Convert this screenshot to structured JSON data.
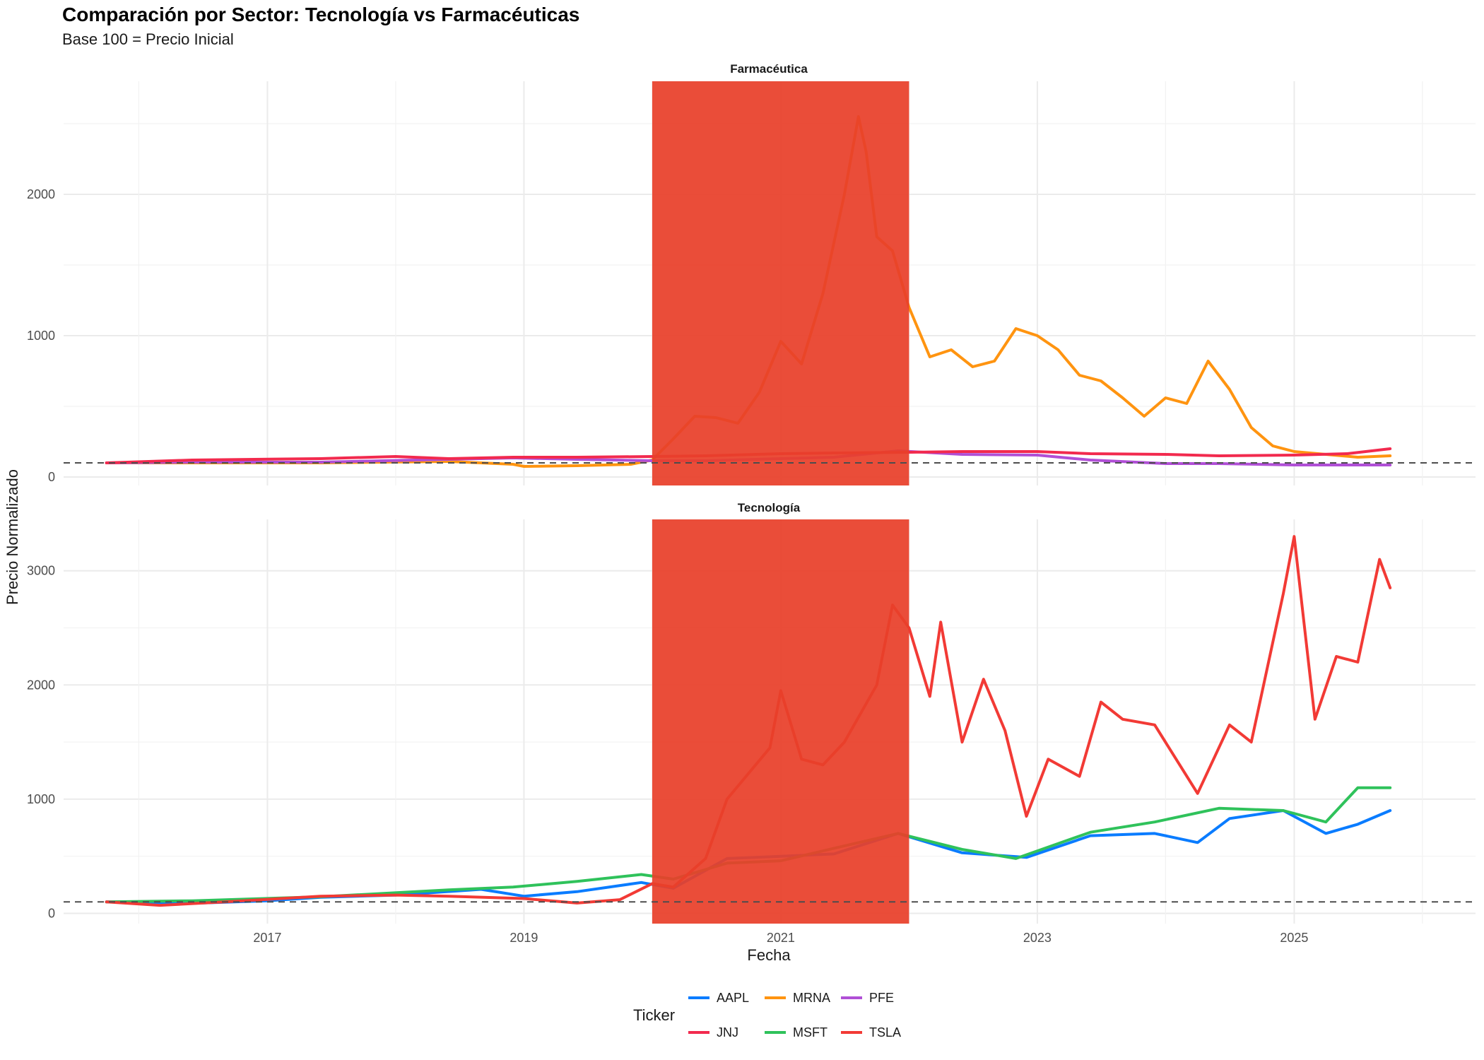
{
  "chart_data": {
    "type": "line",
    "title": "Comparación por Sector: Tecnología vs Farmacéuticas",
    "subtitle": "Base 100 = Precio Inicial",
    "xlabel": "Fecha",
    "ylabel": "Precio Normalizado",
    "x_ticks": [
      "2017",
      "2019",
      "2021",
      "2023",
      "2025"
    ],
    "xlim": [
      "2015-06-01",
      "2026-06-01"
    ],
    "grid": true,
    "reference_line": {
      "y": 100,
      "style": "dashed",
      "color": "#4d4d4d"
    },
    "highlight_period": {
      "start": "2020-01-01",
      "end": "2022-01-01",
      "color": "#E8402A"
    },
    "legend": {
      "title": "Ticker",
      "position": "bottom",
      "items": [
        {
          "label": "AAPL",
          "color": "#0A7CFF"
        },
        {
          "label": "MRNA",
          "color": "#FF9410"
        },
        {
          "label": "PFE",
          "color": "#B04FD6"
        },
        {
          "label": "JNJ",
          "color": "#F22A4E"
        },
        {
          "label": "MSFT",
          "color": "#2FC25B"
        },
        {
          "label": "TSLA",
          "color": "#F23A35"
        }
      ]
    },
    "panels": [
      {
        "strip": "Farmacéutica",
        "ylim": [
          -60,
          2800
        ],
        "y_ticks": [
          0,
          1000,
          2000
        ],
        "series": [
          {
            "name": "MRNA",
            "color": "#FF9410",
            "points": [
              [
                "2015-10-01",
                100
              ],
              [
                "2016-06-01",
                100
              ],
              [
                "2017-06-01",
                100
              ],
              [
                "2018-06-01",
                110
              ],
              [
                "2018-12-01",
                90
              ],
              [
                "2019-01-01",
                75
              ],
              [
                "2019-06-01",
                80
              ],
              [
                "2019-11-01",
                90
              ],
              [
                "2020-01-01",
                120
              ],
              [
                "2020-03-01",
                270
              ],
              [
                "2020-05-01",
                430
              ],
              [
                "2020-07-01",
                420
              ],
              [
                "2020-09-01",
                380
              ],
              [
                "2020-11-01",
                600
              ],
              [
                "2021-01-01",
                960
              ],
              [
                "2021-03-01",
                800
              ],
              [
                "2021-05-01",
                1300
              ],
              [
                "2021-07-01",
                2000
              ],
              [
                "2021-08-10",
                2550
              ],
              [
                "2021-09-01",
                2300
              ],
              [
                "2021-10-01",
                1700
              ],
              [
                "2021-11-15",
                1600
              ],
              [
                "2022-01-01",
                1200
              ],
              [
                "2022-03-01",
                850
              ],
              [
                "2022-05-01",
                900
              ],
              [
                "2022-07-01",
                780
              ],
              [
                "2022-09-01",
                820
              ],
              [
                "2022-11-01",
                1050
              ],
              [
                "2023-01-01",
                1000
              ],
              [
                "2023-03-01",
                900
              ],
              [
                "2023-05-01",
                720
              ],
              [
                "2023-07-01",
                680
              ],
              [
                "2023-09-01",
                560
              ],
              [
                "2023-11-01",
                430
              ],
              [
                "2024-01-01",
                560
              ],
              [
                "2024-03-01",
                520
              ],
              [
                "2024-05-01",
                820
              ],
              [
                "2024-07-01",
                620
              ],
              [
                "2024-09-01",
                350
              ],
              [
                "2024-11-01",
                220
              ],
              [
                "2025-01-01",
                180
              ],
              [
                "2025-04-01",
                160
              ],
              [
                "2025-07-01",
                140
              ],
              [
                "2025-10-01",
                150
              ]
            ]
          },
          {
            "name": "PFE",
            "color": "#B04FD6",
            "points": [
              [
                "2015-10-01",
                100
              ],
              [
                "2016-06-01",
                105
              ],
              [
                "2017-06-01",
                105
              ],
              [
                "2018-06-01",
                125
              ],
              [
                "2018-12-01",
                135
              ],
              [
                "2019-06-01",
                125
              ],
              [
                "2020-01-01",
                115
              ],
              [
                "2020-06-01",
                115
              ],
              [
                "2021-01-01",
                130
              ],
              [
                "2021-06-01",
                140
              ],
              [
                "2021-12-01",
                185
              ],
              [
                "2022-06-01",
                160
              ],
              [
                "2023-01-01",
                155
              ],
              [
                "2023-06-01",
                120
              ],
              [
                "2024-01-01",
                95
              ],
              [
                "2024-06-01",
                95
              ],
              [
                "2025-01-01",
                85
              ],
              [
                "2025-10-01",
                85
              ]
            ]
          },
          {
            "name": "JNJ",
            "color": "#F22A4E",
            "points": [
              [
                "2015-10-01",
                100
              ],
              [
                "2016-06-01",
                120
              ],
              [
                "2017-06-01",
                130
              ],
              [
                "2018-01-01",
                145
              ],
              [
                "2018-06-01",
                130
              ],
              [
                "2018-12-01",
                140
              ],
              [
                "2019-06-01",
                140
              ],
              [
                "2020-01-01",
                145
              ],
              [
                "2020-06-01",
                150
              ],
              [
                "2021-01-01",
                165
              ],
              [
                "2021-06-01",
                170
              ],
              [
                "2022-01-01",
                175
              ],
              [
                "2022-06-01",
                180
              ],
              [
                "2023-01-01",
                180
              ],
              [
                "2023-06-01",
                165
              ],
              [
                "2024-01-01",
                160
              ],
              [
                "2024-06-01",
                150
              ],
              [
                "2025-01-01",
                155
              ],
              [
                "2025-06-01",
                165
              ],
              [
                "2025-10-01",
                200
              ]
            ]
          }
        ]
      },
      {
        "strip": "Tecnología",
        "ylim": [
          -90,
          3450
        ],
        "y_ticks": [
          0,
          1000,
          2000,
          3000
        ],
        "series": [
          {
            "name": "AAPL",
            "color": "#0A7CFF",
            "points": [
              [
                "2015-10-01",
                100
              ],
              [
                "2016-05-01",
                85
              ],
              [
                "2017-01-01",
                110
              ],
              [
                "2017-06-01",
                140
              ],
              [
                "2018-01-01",
                160
              ],
              [
                "2018-09-01",
                210
              ],
              [
                "2019-01-01",
                150
              ],
              [
                "2019-06-01",
                190
              ],
              [
                "2019-12-01",
                270
              ],
              [
                "2020-03-01",
                220
              ],
              [
                "2020-08-01",
                480
              ],
              [
                "2021-01-01",
                500
              ],
              [
                "2021-06-01",
                520
              ],
              [
                "2021-12-01",
                700
              ],
              [
                "2022-06-01",
                530
              ],
              [
                "2022-12-01",
                490
              ],
              [
                "2023-06-01",
                680
              ],
              [
                "2023-12-01",
                700
              ],
              [
                "2024-04-01",
                620
              ],
              [
                "2024-07-01",
                830
              ],
              [
                "2024-12-01",
                900
              ],
              [
                "2025-04-01",
                700
              ],
              [
                "2025-07-01",
                780
              ],
              [
                "2025-10-01",
                900
              ]
            ]
          },
          {
            "name": "MSFT",
            "color": "#2FC25B",
            "points": [
              [
                "2015-10-01",
                100
              ],
              [
                "2016-06-01",
                110
              ],
              [
                "2017-06-01",
                145
              ],
              [
                "2018-06-01",
                205
              ],
              [
                "2018-12-01",
                230
              ],
              [
                "2019-06-01",
                280
              ],
              [
                "2019-12-01",
                340
              ],
              [
                "2020-03-01",
                300
              ],
              [
                "2020-08-01",
                440
              ],
              [
                "2021-01-01",
                460
              ],
              [
                "2021-06-01",
                570
              ],
              [
                "2021-12-01",
                700
              ],
              [
                "2022-06-01",
                560
              ],
              [
                "2022-11-01",
                480
              ],
              [
                "2023-06-01",
                710
              ],
              [
                "2023-12-01",
                800
              ],
              [
                "2024-06-01",
                920
              ],
              [
                "2024-12-01",
                900
              ],
              [
                "2025-04-01",
                800
              ],
              [
                "2025-07-01",
                1100
              ],
              [
                "2025-10-01",
                1100
              ]
            ]
          },
          {
            "name": "TSLA",
            "color": "#F23A35",
            "points": [
              [
                "2015-10-01",
                100
              ],
              [
                "2016-03-01",
                70
              ],
              [
                "2016-09-01",
                100
              ],
              [
                "2017-06-01",
                150
              ],
              [
                "2018-01-01",
                160
              ],
              [
                "2018-06-01",
                150
              ],
              [
                "2019-01-01",
                130
              ],
              [
                "2019-06-01",
                90
              ],
              [
                "2019-10-01",
                120
              ],
              [
                "2020-01-01",
                260
              ],
              [
                "2020-03-01",
                230
              ],
              [
                "2020-06-01",
                480
              ],
              [
                "2020-08-01",
                1000
              ],
              [
                "2020-12-01",
                1450
              ],
              [
                "2021-01-01",
                1950
              ],
              [
                "2021-03-01",
                1350
              ],
              [
                "2021-05-01",
                1300
              ],
              [
                "2021-07-01",
                1500
              ],
              [
                "2021-10-01",
                2000
              ],
              [
                "2021-11-15",
                2700
              ],
              [
                "2022-01-01",
                2500
              ],
              [
                "2022-03-01",
                1900
              ],
              [
                "2022-04-01",
                2550
              ],
              [
                "2022-06-01",
                1500
              ],
              [
                "2022-08-01",
                2050
              ],
              [
                "2022-10-01",
                1600
              ],
              [
                "2022-12-01",
                850
              ],
              [
                "2023-02-01",
                1350
              ],
              [
                "2023-05-01",
                1200
              ],
              [
                "2023-07-01",
                1850
              ],
              [
                "2023-09-01",
                1700
              ],
              [
                "2023-12-01",
                1650
              ],
              [
                "2024-04-01",
                1050
              ],
              [
                "2024-07-01",
                1650
              ],
              [
                "2024-09-01",
                1500
              ],
              [
                "2024-12-01",
                2800
              ],
              [
                "2025-01-01",
                3300
              ],
              [
                "2025-03-01",
                1700
              ],
              [
                "2025-05-01",
                2250
              ],
              [
                "2025-07-01",
                2200
              ],
              [
                "2025-09-01",
                3100
              ],
              [
                "2025-10-01",
                2850
              ]
            ]
          }
        ]
      }
    ]
  }
}
